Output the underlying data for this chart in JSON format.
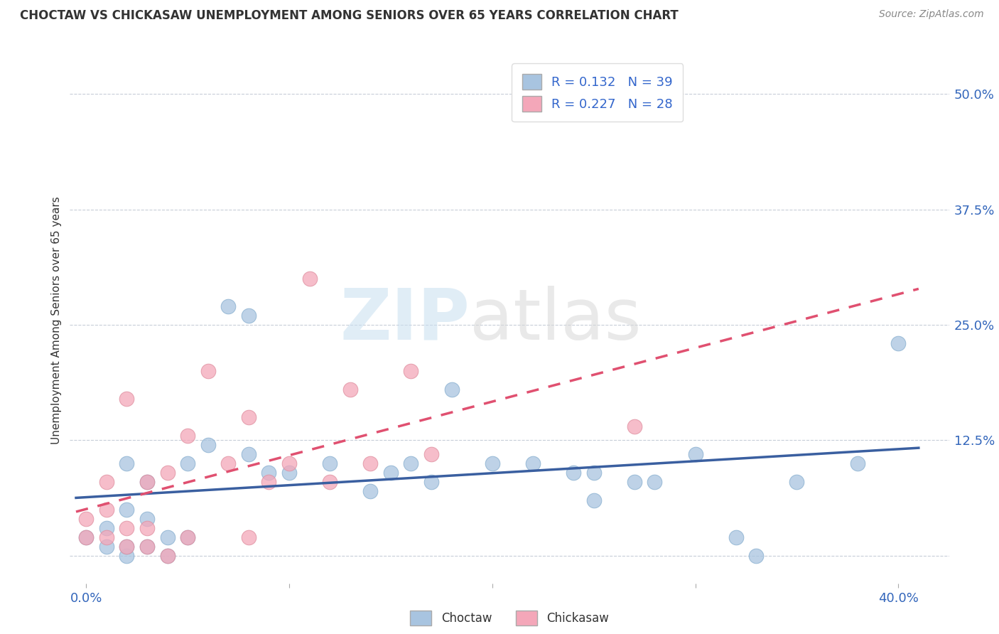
{
  "title": "CHOCTAW VS CHICKASAW UNEMPLOYMENT AMONG SENIORS OVER 65 YEARS CORRELATION CHART",
  "source": "Source: ZipAtlas.com",
  "xlabel_ticks": [
    "0.0%",
    "",
    "",
    "",
    "40.0%"
  ],
  "xlabel_tick_vals": [
    0.0,
    0.1,
    0.2,
    0.3,
    0.4
  ],
  "ylabel_ticks": [
    "50.0%",
    "37.5%",
    "25.0%",
    "12.5%",
    ""
  ],
  "ylabel_tick_vals": [
    0.5,
    0.375,
    0.25,
    0.125,
    0.0
  ],
  "ylabel": "Unemployment Among Seniors over 65 years",
  "xlim": [
    -0.008,
    0.425
  ],
  "ylim": [
    -0.03,
    0.54
  ],
  "choctaw_R": 0.132,
  "choctaw_N": 39,
  "chickasaw_R": 0.227,
  "chickasaw_N": 28,
  "choctaw_color": "#a8c4e0",
  "chickasaw_color": "#f4a7b9",
  "choctaw_line_color": "#3a5fa0",
  "chickasaw_line_color": "#e05070",
  "choctaw_x": [
    0.0,
    0.01,
    0.01,
    0.02,
    0.02,
    0.02,
    0.02,
    0.03,
    0.03,
    0.03,
    0.04,
    0.04,
    0.05,
    0.05,
    0.06,
    0.07,
    0.08,
    0.08,
    0.09,
    0.1,
    0.12,
    0.14,
    0.15,
    0.16,
    0.17,
    0.18,
    0.2,
    0.22,
    0.24,
    0.25,
    0.25,
    0.27,
    0.28,
    0.3,
    0.32,
    0.33,
    0.35,
    0.38,
    0.4
  ],
  "choctaw_y": [
    0.02,
    0.01,
    0.03,
    0.0,
    0.01,
    0.05,
    0.1,
    0.01,
    0.04,
    0.08,
    0.0,
    0.02,
    0.02,
    0.1,
    0.12,
    0.27,
    0.26,
    0.11,
    0.09,
    0.09,
    0.1,
    0.07,
    0.09,
    0.1,
    0.08,
    0.18,
    0.1,
    0.1,
    0.09,
    0.09,
    0.06,
    0.08,
    0.08,
    0.11,
    0.02,
    0.0,
    0.08,
    0.1,
    0.23
  ],
  "chickasaw_x": [
    0.0,
    0.0,
    0.01,
    0.01,
    0.01,
    0.02,
    0.02,
    0.02,
    0.03,
    0.03,
    0.03,
    0.04,
    0.04,
    0.05,
    0.05,
    0.06,
    0.07,
    0.08,
    0.08,
    0.09,
    0.1,
    0.11,
    0.12,
    0.13,
    0.14,
    0.16,
    0.17,
    0.27
  ],
  "chickasaw_y": [
    0.02,
    0.04,
    0.02,
    0.05,
    0.08,
    0.01,
    0.03,
    0.17,
    0.01,
    0.03,
    0.08,
    0.0,
    0.09,
    0.02,
    0.13,
    0.2,
    0.1,
    0.02,
    0.15,
    0.08,
    0.1,
    0.3,
    0.08,
    0.18,
    0.1,
    0.2,
    0.11,
    0.14
  ],
  "background_color": "#ffffff",
  "grid_color": "#b0b8c8"
}
